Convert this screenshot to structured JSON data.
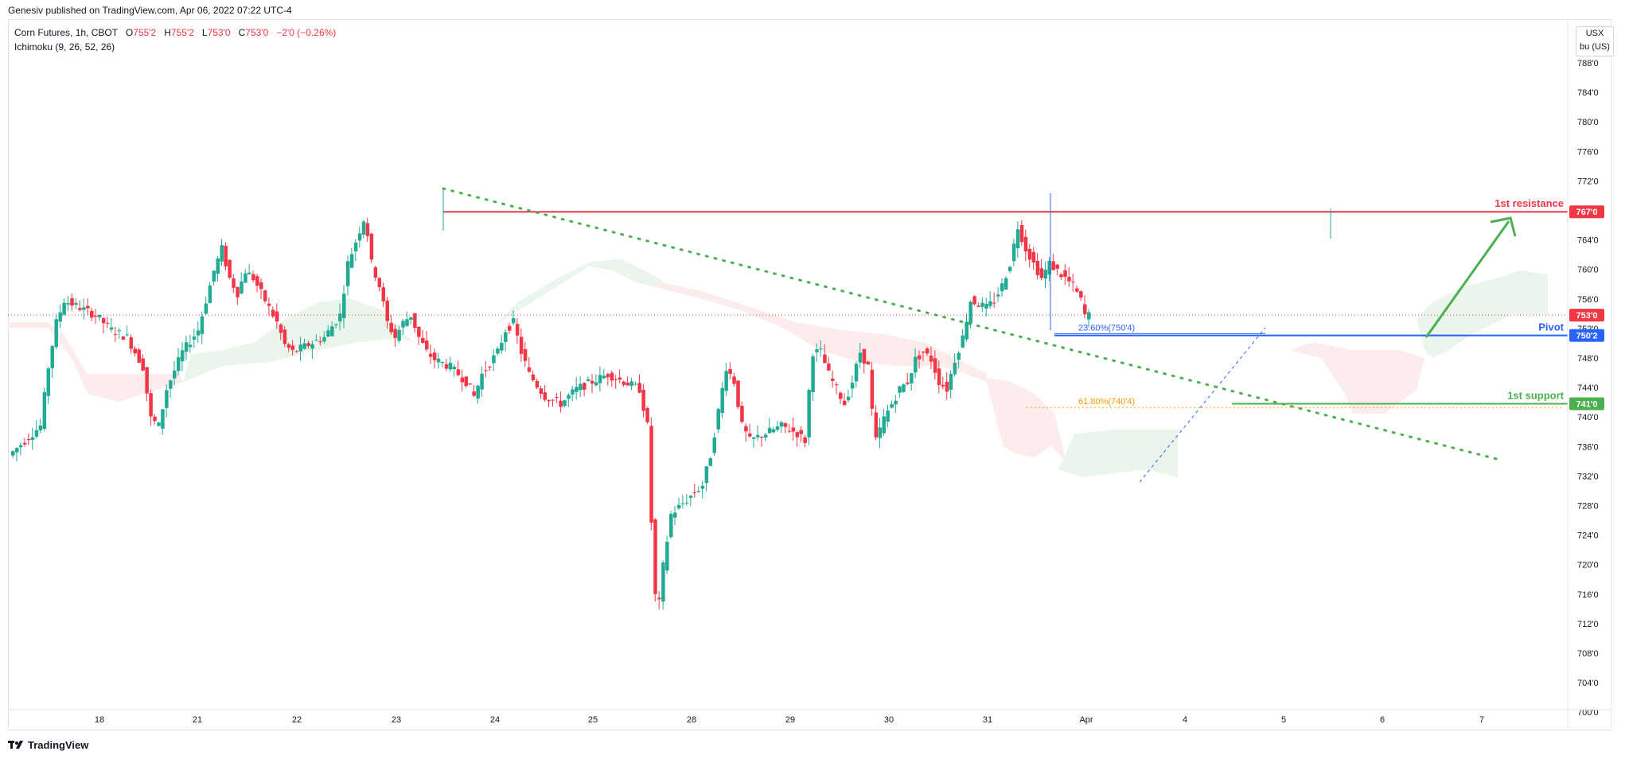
{
  "header": {
    "publisher_line": "Genesiv published on TradingView.com, Apr 06, 2022 07:22 UTC-4"
  },
  "legend": {
    "symbol": "Corn Futures, 1h, CBOT",
    "open_label": "O",
    "open": "755'2",
    "high_label": "H",
    "high": "755'2",
    "low_label": "L",
    "low": "753'0",
    "close_label": "C",
    "close": "753'0",
    "change": "−2'0 (−0.26%)",
    "indicator": "Ichimoku (9, 26, 52, 26)"
  },
  "unit": {
    "line1": "USX",
    "line2": "bu (US)"
  },
  "brand": {
    "name": "TradingView",
    "icon": "tradingview-logo-icon"
  },
  "colors": {
    "up": "#22ab94",
    "down": "#f23645",
    "resistance": "#f23645",
    "pivot": "#2962ff",
    "support": "#4caf50",
    "trendline": "#4caf50",
    "fib_23": "#2962ff",
    "fib_61": "#ff9800",
    "cloud_green": "#e8f5e9",
    "cloud_red": "#fdeaea"
  },
  "chart_data": {
    "type": "candlestick",
    "timeframe": "1h",
    "y_axis": {
      "ylim": [
        699,
        791
      ],
      "ticks": [
        "788'0",
        "784'0",
        "780'0",
        "776'0",
        "772'0",
        "768'0",
        "764'0",
        "760'0",
        "756'0",
        "752'0",
        "748'0",
        "744'0",
        "740'0",
        "736'0",
        "732'0",
        "728'0",
        "724'0",
        "720'0",
        "716'0",
        "712'0",
        "708'0",
        "704'0",
        "700'0"
      ]
    },
    "x_axis": {
      "ticks": [
        "18",
        "21",
        "22",
        "23",
        "24",
        "25",
        "28",
        "29",
        "30",
        "31",
        "Apr",
        "4",
        "5",
        "6",
        "7"
      ]
    },
    "price_path": [
      [
        0,
        734
      ],
      [
        40,
        738
      ],
      [
        50,
        746
      ],
      [
        60,
        752
      ],
      [
        70,
        755
      ],
      [
        90,
        754
      ],
      [
        110,
        753
      ],
      [
        130,
        751
      ],
      [
        150,
        750
      ],
      [
        170,
        746
      ],
      [
        180,
        739
      ],
      [
        190,
        738
      ],
      [
        200,
        743
      ],
      [
        220,
        748
      ],
      [
        240,
        751
      ],
      [
        250,
        755
      ],
      [
        260,
        759
      ],
      [
        270,
        762
      ],
      [
        280,
        758
      ],
      [
        290,
        756
      ],
      [
        300,
        759
      ],
      [
        310,
        758
      ],
      [
        320,
        756
      ],
      [
        340,
        752
      ],
      [
        350,
        749
      ],
      [
        360,
        748
      ],
      [
        380,
        749
      ],
      [
        400,
        750
      ],
      [
        420,
        753
      ],
      [
        430,
        760
      ],
      [
        440,
        763
      ],
      [
        450,
        766
      ],
      [
        455,
        764
      ],
      [
        460,
        760
      ],
      [
        470,
        757
      ],
      [
        480,
        752
      ],
      [
        490,
        750
      ],
      [
        500,
        752
      ],
      [
        510,
        753
      ],
      [
        520,
        750
      ],
      [
        530,
        748
      ],
      [
        540,
        747
      ],
      [
        560,
        746
      ],
      [
        580,
        744
      ],
      [
        590,
        742
      ],
      [
        600,
        745
      ],
      [
        620,
        748
      ],
      [
        630,
        751
      ],
      [
        640,
        752
      ],
      [
        650,
        748
      ],
      [
        660,
        745
      ],
      [
        680,
        742
      ],
      [
        700,
        741
      ],
      [
        720,
        743
      ],
      [
        740,
        744
      ],
      [
        760,
        745
      ],
      [
        780,
        744
      ],
      [
        800,
        743
      ],
      [
        810,
        738
      ],
      [
        815,
        725
      ],
      [
        820,
        715
      ],
      [
        825,
        714
      ],
      [
        830,
        719
      ],
      [
        840,
        726
      ],
      [
        860,
        728
      ],
      [
        880,
        730
      ],
      [
        890,
        734
      ],
      [
        900,
        740
      ],
      [
        910,
        746
      ],
      [
        920,
        744
      ],
      [
        930,
        738
      ],
      [
        940,
        736
      ],
      [
        960,
        737
      ],
      [
        980,
        738
      ],
      [
        1000,
        737
      ],
      [
        1010,
        736
      ],
      [
        1014,
        741
      ],
      [
        1018,
        748
      ],
      [
        1030,
        748
      ],
      [
        1040,
        745
      ],
      [
        1050,
        743
      ],
      [
        1060,
        741
      ],
      [
        1070,
        744
      ],
      [
        1080,
        748
      ],
      [
        1090,
        746
      ],
      [
        1095,
        740
      ],
      [
        1100,
        736
      ],
      [
        1110,
        739
      ],
      [
        1120,
        741
      ],
      [
        1130,
        743
      ],
      [
        1140,
        744
      ],
      [
        1150,
        747
      ],
      [
        1160,
        748
      ],
      [
        1170,
        747
      ],
      [
        1180,
        744
      ],
      [
        1190,
        743
      ],
      [
        1200,
        747
      ],
      [
        1210,
        750
      ],
      [
        1220,
        755
      ],
      [
        1240,
        754
      ],
      [
        1250,
        755
      ],
      [
        1260,
        757
      ],
      [
        1270,
        760
      ],
      [
        1280,
        765
      ],
      [
        1290,
        762
      ],
      [
        1300,
        760
      ],
      [
        1310,
        758
      ],
      [
        1320,
        760
      ],
      [
        1330,
        759
      ],
      [
        1340,
        758
      ],
      [
        1350,
        757
      ],
      [
        1360,
        755
      ],
      [
        1365,
        753
      ]
    ],
    "levels": [
      {
        "name": "1st resistance",
        "label": "1st resistance",
        "price": 767.0,
        "price_label": "767'0"
      },
      {
        "name": "Pivot",
        "label": "Pivot",
        "price": 750.25,
        "price_label": "750'2"
      },
      {
        "name": "1st support",
        "label": "1st support",
        "price": 741.0,
        "price_label": "741'0"
      }
    ],
    "last_price": {
      "price": 753.0,
      "price_label": "753'0"
    },
    "fibonacci": [
      {
        "label": "23.60%(750'4)",
        "price": 750.5
      },
      {
        "label": "61.80%(740'4)",
        "price": 740.5
      }
    ],
    "annotations": [
      "downtrend trendline (dotted)",
      "projection arrow to 1st resistance"
    ]
  }
}
